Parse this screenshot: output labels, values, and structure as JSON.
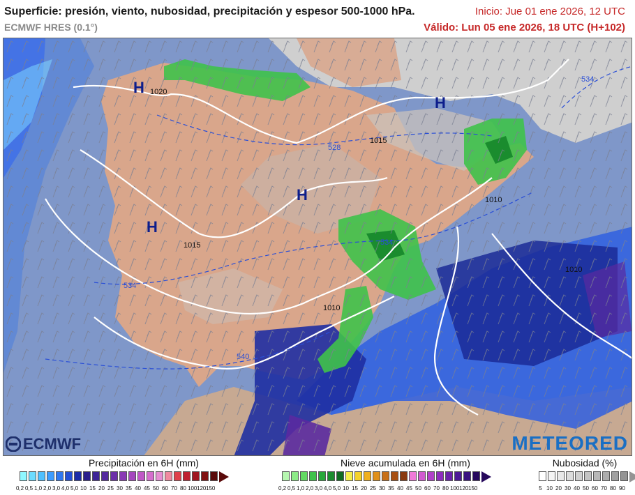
{
  "header": {
    "title": "Superficie: presión, viento, nubosidad, precipitación y espesor 500-1000 hPa.",
    "model": "ECMWF HRES (0.1°)",
    "run": "Inicio: Jue 01 ene 2026, 12 UTC",
    "valid": "Válido: Lun 05 ene 2026, 18 UTC (H+102)"
  },
  "map": {
    "high_labels": [
      "H",
      "H",
      "H",
      "H"
    ],
    "isobars": [
      "1020",
      "1015",
      "1015",
      "1010",
      "1010",
      "1010"
    ],
    "thickness": [
      "528",
      "534",
      "534",
      "534",
      "540"
    ],
    "colors": {
      "sea": "#7f97c9",
      "land": "#d9a68b",
      "cloud": "#bdbdbd",
      "isobar": "#ffffff",
      "thickness": "#2a4fd6",
      "high": "#0d1e8c"
    }
  },
  "branding": {
    "left": "ECMWF",
    "right": "METEORED"
  },
  "legend": {
    "precip": {
      "title": "Precipitación en 6H (mm)",
      "ticks": [
        "0,2",
        "0,5",
        "1,0",
        "2,0",
        "3,0",
        "4,0",
        "5,0",
        "10",
        "15",
        "20",
        "25",
        "30",
        "35",
        "40",
        "45",
        "50",
        "60",
        "70",
        "80",
        "100",
        "120",
        "150"
      ],
      "colors": [
        "#8ff7ff",
        "#6cdcff",
        "#4fc0ff",
        "#3c9cff",
        "#2f78f0",
        "#2350d6",
        "#1b2ca8",
        "#2a1f8c",
        "#3d2496",
        "#54299e",
        "#6c30a8",
        "#8a3ab4",
        "#a446bd",
        "#bf57c6",
        "#d56ecd",
        "#e68fd3",
        "#f08aa0",
        "#e0404a",
        "#c02030",
        "#a0161f",
        "#801010",
        "#5a0a0a"
      ]
    },
    "snow": {
      "title": "Nieve acumulada en 6H (mm)",
      "ticks": [
        "0,2",
        "0,5",
        "1,0",
        "2,0",
        "3,0",
        "4,0",
        "5,0",
        "10",
        "15",
        "20",
        "25",
        "30",
        "35",
        "40",
        "45",
        "50",
        "60",
        "70",
        "80",
        "100",
        "120",
        "150"
      ],
      "colors": [
        "#b6f7b0",
        "#8deb88",
        "#63d963",
        "#3fc24a",
        "#28a83a",
        "#1a8c2e",
        "#0f6b22",
        "#f5f04a",
        "#f5d22a",
        "#f0b020",
        "#e0901a",
        "#c87018",
        "#a85012",
        "#8a3a10",
        "#f07ad8",
        "#d05ad0",
        "#b040c8",
        "#8e2cbd",
        "#6c22ab",
        "#4e1a96",
        "#3a1280",
        "#26085c"
      ]
    },
    "cloud": {
      "title": "Nubosidad (%)",
      "ticks": [
        "5",
        "10",
        "20",
        "30",
        "40",
        "50",
        "60",
        "70",
        "80",
        "90"
      ],
      "colors": [
        "#ffffff",
        "#f4f4f4",
        "#e8e8e8",
        "#dcdcdc",
        "#d0d0d0",
        "#c4c4c4",
        "#b8b8b8",
        "#acacac",
        "#a0a0a0",
        "#949494"
      ]
    }
  }
}
